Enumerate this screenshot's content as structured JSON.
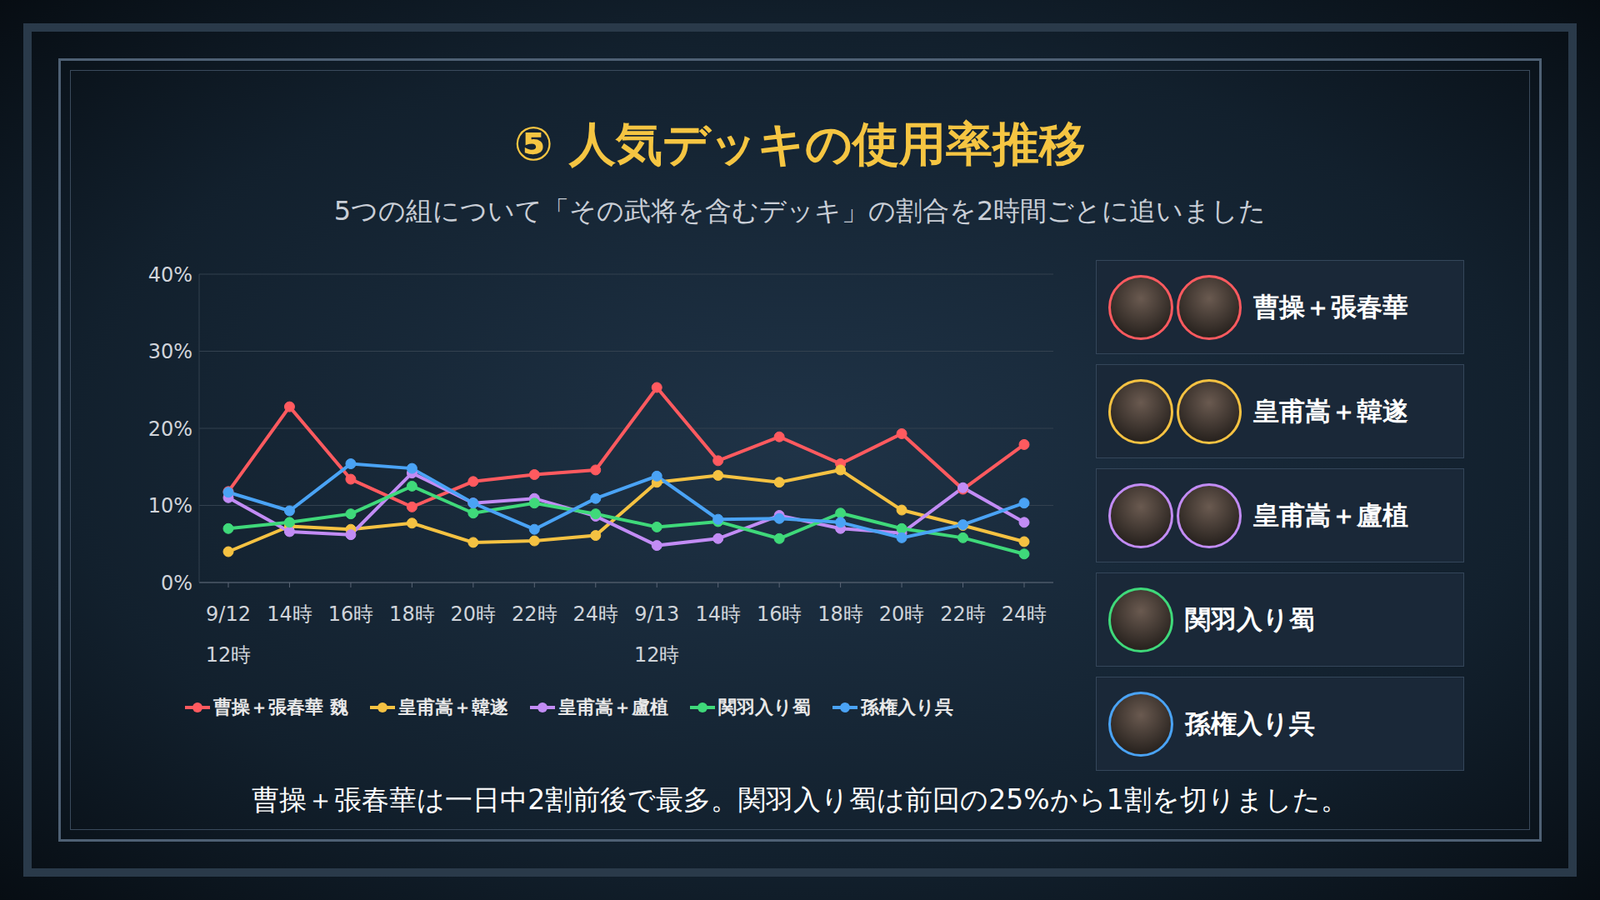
{
  "chart_data": {
    "type": "line",
    "title": "⑤ 人気デッキの使用率推移",
    "subtitle": "5つの組について「その武将を含むデッキ」の割合を2時間ごとに追いました",
    "note": "曹操＋張春華は一日中2割前後で最多。関羽入り蜀は前回の25%から1割を切りました。",
    "categories": [
      "9/12\n12時",
      "14時",
      "16時",
      "18時",
      "20時",
      "22時",
      "24時",
      "9/13\n12時",
      "14時",
      "16時",
      "18時",
      "20時",
      "22時",
      "24時"
    ],
    "series": [
      {
        "name": "曹操＋張春華 魏",
        "panel_label": "曹操＋張春華",
        "color": "#ff5a5f",
        "values": [
          11.8,
          22.8,
          13.4,
          9.8,
          13.1,
          14.0,
          14.6,
          25.3,
          15.8,
          18.9,
          15.4,
          19.3,
          12.1,
          17.9
        ]
      },
      {
        "name": "皇甫嵩＋韓遂",
        "panel_label": "皇甫嵩＋韓遂",
        "color": "#f5c242",
        "values": [
          4.0,
          7.3,
          6.9,
          7.7,
          5.2,
          5.4,
          6.1,
          13.0,
          13.9,
          13.0,
          14.6,
          9.4,
          7.4,
          5.3
        ]
      },
      {
        "name": "皇甫嵩＋盧植",
        "panel_label": "皇甫嵩＋盧植",
        "color": "#c28cf5",
        "values": [
          11.0,
          6.6,
          6.2,
          14.2,
          10.3,
          10.9,
          8.6,
          4.8,
          5.7,
          8.7,
          7.0,
          6.4,
          12.3,
          7.8
        ]
      },
      {
        "name": "関羽入り蜀",
        "panel_label": "関羽入り蜀",
        "color": "#3fd97a",
        "values": [
          7.0,
          7.8,
          8.9,
          12.5,
          9.0,
          10.3,
          8.9,
          7.2,
          7.9,
          5.7,
          9.0,
          7.0,
          5.8,
          3.7
        ]
      },
      {
        "name": "孫権入り呉",
        "panel_label": "孫権入り呉",
        "color": "#4aa3f5",
        "values": [
          11.7,
          9.3,
          15.4,
          14.8,
          10.3,
          6.9,
          10.9,
          13.8,
          8.2,
          8.3,
          7.8,
          5.8,
          7.5,
          10.3
        ]
      }
    ],
    "ylim": [
      0,
      40
    ],
    "yticks": [
      {
        "value": 0,
        "label": "0%"
      },
      {
        "value": 10,
        "label": "10%"
      },
      {
        "value": 20,
        "label": "20%"
      },
      {
        "value": 30,
        "label": "30%"
      },
      {
        "value": 40,
        "label": "40%"
      }
    ],
    "grid": true,
    "legend": "bottom",
    "marker": "circle"
  }
}
